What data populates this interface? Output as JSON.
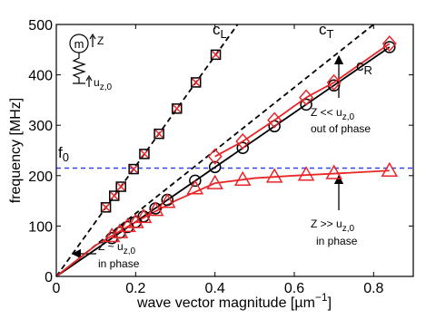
{
  "chart_data": {
    "type": "line",
    "xlabel": {
      "text": "wave vector magnitude [µm",
      "sup": "−1",
      "end": "]"
    },
    "ylabel": "frequency [MHz]",
    "xlim": [
      0,
      0.9
    ],
    "ylim": [
      0,
      500
    ],
    "xticks": [
      0,
      0.2,
      0.4,
      0.6,
      0.8
    ],
    "yticks": [
      0,
      100,
      200,
      300,
      400,
      500
    ],
    "hline": {
      "value": 215,
      "color": "#3344ee",
      "style": "dashed"
    },
    "series": [
      {
        "color": "#000000",
        "style": "dashed",
        "marker": "none",
        "x": [
          0,
          0.457
        ],
        "values": [
          0,
          500
        ]
      },
      {
        "color": "#000000",
        "style": "dashed",
        "marker": "none",
        "x": [
          0,
          0.8
        ],
        "values": [
          0,
          500
        ]
      },
      {
        "color": "#000000",
        "style": "solid",
        "marker": "none",
        "x": [
          0,
          0.84
        ],
        "values": [
          0,
          455
        ]
      },
      {
        "color": "#e8262a",
        "style": "solid",
        "marker": "none",
        "x": [
          0,
          0.1,
          0.2,
          0.3,
          0.4,
          0.5,
          0.6,
          0.7,
          0.84
        ],
        "values": [
          0,
          62,
          108,
          150,
          185,
          195,
          200,
          204,
          210
        ]
      },
      {
        "color": "#000000",
        "style": "none",
        "marker": "square-x",
        "x": [
          0.125,
          0.146,
          0.163,
          0.195,
          0.222,
          0.259,
          0.304,
          0.352,
          0.402
        ],
        "values": [
          137,
          160,
          178,
          213,
          243,
          283,
          333,
          385,
          440
        ]
      },
      {
        "color": "#000000",
        "style": "none",
        "marker": "circle",
        "x": [
          0.14,
          0.16,
          0.18,
          0.2,
          0.22,
          0.25,
          0.28,
          0.35,
          0.4,
          0.47,
          0.55,
          0.63,
          0.7,
          0.84
        ],
        "values": [
          76,
          87,
          98,
          108,
          119,
          135,
          152,
          190,
          217,
          255,
          298,
          341,
          379,
          455
        ]
      },
      {
        "color": "#e8262a",
        "style": "solid",
        "marker": "diamond",
        "x": [
          0.4,
          0.47,
          0.55,
          0.63,
          0.7,
          0.84
        ],
        "values": [
          238,
          268,
          310,
          355,
          385,
          462
        ]
      },
      {
        "color": "#e8262a",
        "style": "none",
        "marker": "triangle",
        "x": [
          0.14,
          0.16,
          0.18,
          0.2,
          0.22,
          0.25,
          0.28,
          0.35,
          0.4,
          0.47,
          0.55,
          0.63,
          0.7,
          0.84
        ],
        "values": [
          80,
          88,
          100,
          108,
          118,
          132,
          148,
          175,
          185,
          192,
          198,
          202,
          205,
          210
        ]
      }
    ],
    "annotations": [
      {
        "text": "c",
        "sub": "L"
      },
      {
        "text": "c",
        "sub": "T"
      },
      {
        "text": "c",
        "sub": "R"
      },
      {
        "text": "f",
        "sub": "0"
      },
      {
        "text": "Z << u",
        "sub": "z,0"
      },
      {
        "text": "out of phase"
      },
      {
        "text": "Z >> u",
        "sub": "z,0"
      },
      {
        "text": "in phase"
      },
      {
        "text": "Z ~ u",
        "sub": "z,0"
      },
      {
        "text": "in phase"
      }
    ],
    "inset": {
      "mass": "m",
      "z": "Z",
      "u": {
        "text": "u",
        "sub": "z,0"
      }
    }
  }
}
